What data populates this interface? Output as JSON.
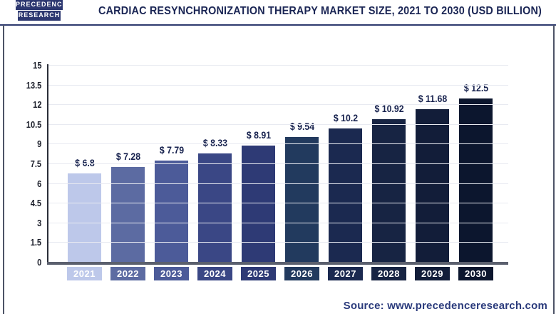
{
  "brand": {
    "logo_line1": "PRECEDENCE",
    "logo_line2": "RESEARCH"
  },
  "header": {
    "title": "CARDIAC RESYNCHRONIZATION THERAPY MARKET SIZE, 2021 TO 2030 (USD BILLION)"
  },
  "footer": {
    "source": "Source: www.precedenceresearch.com"
  },
  "colors": {
    "title_navy": "#1a2554",
    "logo_navy": "#2c3770",
    "axis_line": "#2a2d38",
    "baseline_gray": "#5b606e",
    "gridline": "#e8eaf1",
    "frame_border": "#4d5366",
    "value_label": "#17224e",
    "source_text": "#2b3b7c"
  },
  "chart_data": {
    "type": "bar",
    "title": "Cardiac Resynchronization Therapy Market Size, 2021 to 2030 (USD Billion)",
    "categories": [
      "2021",
      "2022",
      "2023",
      "2024",
      "2025",
      "2026",
      "2027",
      "2028",
      "2029",
      "2030"
    ],
    "values": [
      6.8,
      7.28,
      7.79,
      8.33,
      8.91,
      9.54,
      10.2,
      10.92,
      11.68,
      12.5
    ],
    "value_labels": [
      "$ 6.8",
      "$ 7.28",
      "$ 7.79",
      "$ 8.33",
      "$ 8.91",
      "$ 9.54",
      "$ 10.2",
      "$ 10.92",
      "$ 11.68",
      "$ 12.5"
    ],
    "bar_colors": [
      "#bdc8ea",
      "#5c6ba2",
      "#4c5b99",
      "#3a4785",
      "#2e3a75",
      "#223a5e",
      "#1b2950",
      "#172443",
      "#121d39",
      "#0c162e"
    ],
    "y_ticks": [
      0,
      1.5,
      3,
      4.5,
      6,
      7.5,
      9,
      10.5,
      12,
      13.5,
      15
    ],
    "ylim": [
      0,
      15
    ],
    "xlabel": "",
    "ylabel": "",
    "grid": true,
    "legend": false
  }
}
